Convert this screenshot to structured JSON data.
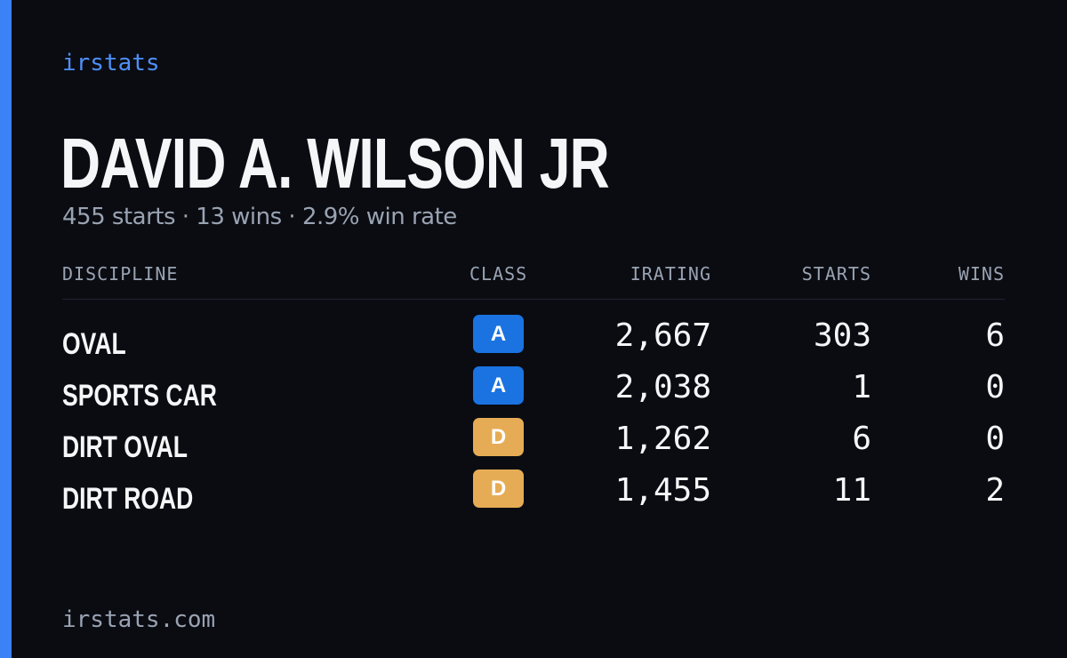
{
  "brand": "irstats",
  "driver": {
    "name": "DAVID A. WILSON JR",
    "summary": "455 starts · 13 wins · 2.9% win rate"
  },
  "table": {
    "headers": {
      "discipline": "DISCIPLINE",
      "class": "CLASS",
      "irating": "IRATING",
      "starts": "STARTS",
      "wins": "WINS"
    },
    "rows": [
      {
        "discipline": "OVAL",
        "class": "A",
        "class_color": "#1a73e0",
        "irating": "2,667",
        "starts": "303",
        "wins": "6"
      },
      {
        "discipline": "SPORTS CAR",
        "class": "A",
        "class_color": "#1a73e0",
        "irating": "2,038",
        "starts": "1",
        "wins": "0"
      },
      {
        "discipline": "DIRT OVAL",
        "class": "D",
        "class_color": "#e6ac55",
        "irating": "1,262",
        "starts": "6",
        "wins": "0"
      },
      {
        "discipline": "DIRT ROAD",
        "class": "D",
        "class_color": "#e6ac55",
        "irating": "1,455",
        "starts": "11",
        "wins": "2"
      }
    ]
  },
  "footer": "irstats.com",
  "colors": {
    "accent": "#3b82f6",
    "background": "#0a0c12",
    "text": "#f5f6f8",
    "muted": "#9aa3b2"
  }
}
